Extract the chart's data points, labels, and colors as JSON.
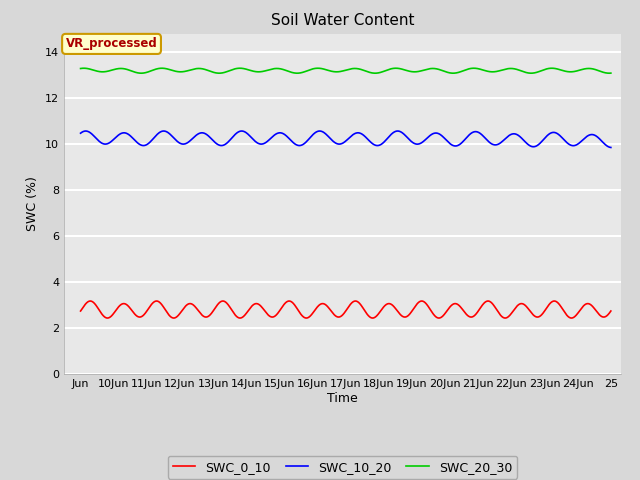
{
  "title": "Soil Water Content",
  "xlabel": "Time",
  "ylabel": "SWC (%)",
  "ylim": [
    0,
    14.8
  ],
  "yticks": [
    0,
    2,
    4,
    6,
    8,
    10,
    12,
    14
  ],
  "x_start_day": 9,
  "x_end_day": 25,
  "xtick_positions": [
    9,
    10,
    11,
    12,
    13,
    14,
    15,
    16,
    17,
    18,
    19,
    20,
    21,
    22,
    23,
    24,
    25
  ],
  "xtick_labels": [
    "Jun",
    "10Jun",
    "11Jun",
    "12Jun",
    "13Jun",
    "14Jun",
    "15Jun",
    "16Jun",
    "17Jun",
    "18Jun",
    "19Jun",
    "20Jun",
    "21Jun",
    "22Jun",
    "23Jun",
    "24Jun",
    "25"
  ],
  "swc_0_10_base": 2.8,
  "swc_0_10_amp": 0.33,
  "swc_0_10_cycles_per_day": 1.0,
  "swc_10_20_base": 10.25,
  "swc_10_20_amp": 0.28,
  "swc_10_20_cycles_per_day": 0.85,
  "swc_10_20_drift": -0.014,
  "swc_20_30_base": 13.2,
  "swc_20_30_amp": 0.09,
  "swc_20_30_cycles_per_day": 0.85,
  "color_swc_0_10": "#ff0000",
  "color_swc_10_20": "#0000ff",
  "color_swc_20_30": "#00cc00",
  "legend_labels": [
    "SWC_0_10",
    "SWC_10_20",
    "SWC_20_30"
  ],
  "annotation_text": "VR_processed",
  "annotation_color": "#aa0000",
  "annotation_bg": "#ffffcc",
  "annotation_border": "#cc9900",
  "fig_bg_color": "#d8d8d8",
  "plot_bg_color": "#e8e8e8",
  "grid_color": "#ffffff",
  "linewidth": 1.2
}
